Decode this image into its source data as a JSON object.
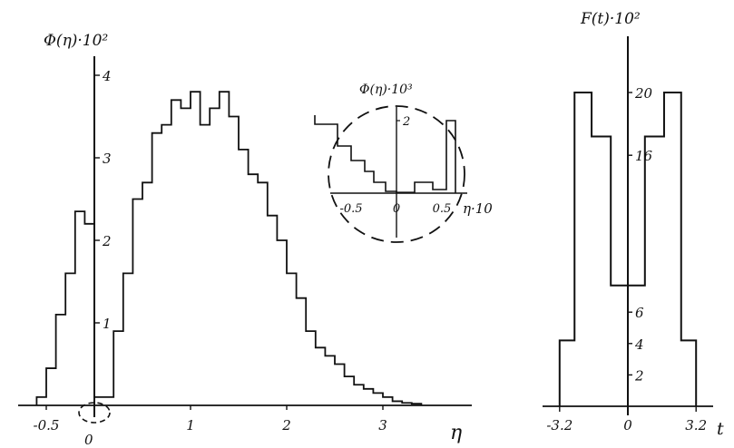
{
  "chart_data": [
    {
      "type": "histogram",
      "ylabel": "Φ(η)·10²",
      "xlabel": "η",
      "xlim": [
        -0.6,
        3.9
      ],
      "ylim": [
        0,
        4.3
      ],
      "x_ticks": [
        "-0.5",
        "1",
        "2",
        "3"
      ],
      "x_extra_label": "0",
      "y_ticks": [
        "1",
        "2",
        "3",
        "4"
      ],
      "bin_start": -0.6,
      "bin_width": 0.1,
      "values": [
        0.1,
        0.45,
        1.1,
        1.6,
        2.35,
        2.2,
        0.1,
        0.1,
        0.9,
        1.6,
        2.5,
        2.7,
        3.3,
        3.4,
        3.7,
        3.6,
        3.8,
        3.4,
        3.6,
        3.8,
        3.5,
        3.1,
        2.8,
        2.7,
        2.3,
        2.0,
        1.6,
        1.3,
        0.9,
        0.7,
        0.6,
        0.5,
        0.35,
        0.25,
        0.2,
        0.15,
        0.1,
        0.05,
        0.03,
        0.02
      ],
      "grid": false,
      "legend": "none"
    },
    {
      "type": "histogram",
      "title": "",
      "ylabel": "Φ(η)·10³",
      "xlabel": "η·10",
      "xlim": [
        -0.9,
        0.9
      ],
      "ylim": [
        0,
        2.7
      ],
      "x_ticks": [
        "-0.5",
        "0",
        "0.5"
      ],
      "y_ticks": [
        "2"
      ],
      "bins": [
        {
          "x0": -0.9,
          "x1": -0.65,
          "value": 1.9
        },
        {
          "x0": -0.65,
          "x1": -0.5,
          "value": 1.3
        },
        {
          "x0": -0.5,
          "x1": -0.35,
          "value": 0.9
        },
        {
          "x0": -0.35,
          "x1": -0.25,
          "value": 0.6
        },
        {
          "x0": -0.25,
          "x1": -0.12,
          "value": 0.3
        },
        {
          "x0": -0.12,
          "x1": 0.0,
          "value": 0.05
        },
        {
          "x0": 0.0,
          "x1": 0.2,
          "value": 0.02
        },
        {
          "x0": 0.2,
          "x1": 0.4,
          "value": 0.3
        },
        {
          "x0": 0.4,
          "x1": 0.55,
          "value": 0.1
        },
        {
          "x0": 0.55,
          "x1": 0.65,
          "value": 2.0
        }
      ],
      "grid": false
    },
    {
      "type": "histogram",
      "ylabel": "F(t)·10²",
      "xlabel": "t",
      "xlim": [
        -3.9,
        4.1
      ],
      "ylim": [
        0,
        22
      ],
      "x_ticks": [
        "-3.2",
        "0",
        "3.2"
      ],
      "y_ticks": [
        "2",
        "4",
        "6",
        "16",
        "20"
      ],
      "bins": [
        {
          "x0": -3.2,
          "x1": -2.5,
          "value": 4.2
        },
        {
          "x0": -2.5,
          "x1": -1.7,
          "value": 20.0
        },
        {
          "x0": -1.7,
          "x1": -0.8,
          "value": 17.2
        },
        {
          "x0": -0.8,
          "x1": 0.8,
          "value": 7.7
        },
        {
          "x0": 0.8,
          "x1": 1.7,
          "value": 17.2
        },
        {
          "x0": 1.7,
          "x1": 2.5,
          "value": 20.0
        },
        {
          "x0": 2.5,
          "x1": 3.2,
          "value": 4.2
        }
      ],
      "grid": false,
      "legend": "none"
    }
  ]
}
